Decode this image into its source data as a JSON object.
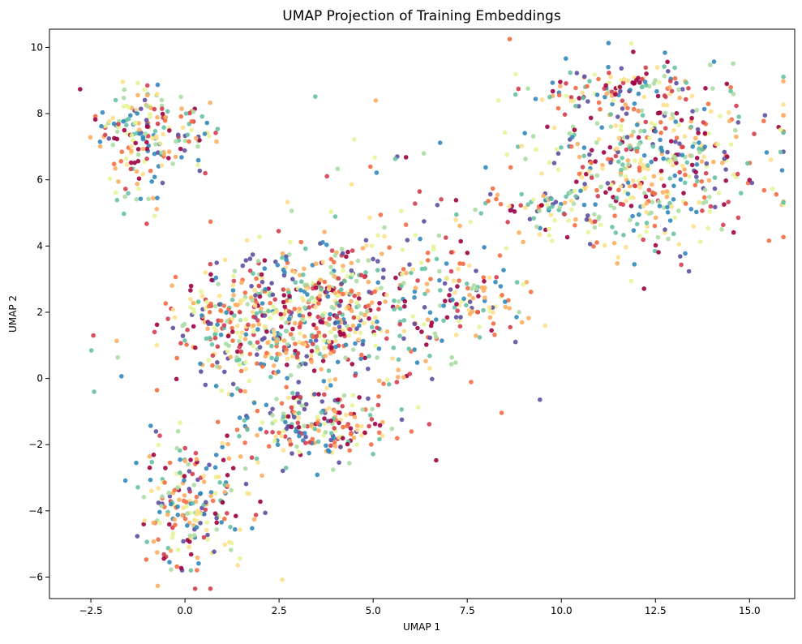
{
  "chart_data": {
    "type": "scatter",
    "title": "UMAP Projection of Training Embeddings",
    "xlabel": "UMAP 1",
    "ylabel": "UMAP 2",
    "xlim": [
      -3.6,
      16.2
    ],
    "ylim": [
      -6.65,
      10.55
    ],
    "xticks": [
      -2.5,
      0.0,
      2.5,
      5.0,
      7.5,
      10.0,
      12.5,
      15.0
    ],
    "xtick_labels": [
      "−2.5",
      "0.0",
      "2.5",
      "5.0",
      "7.5",
      "10.0",
      "12.5",
      "15.0"
    ],
    "yticks": [
      -6,
      -4,
      -2,
      0,
      2,
      4,
      6,
      8,
      10
    ],
    "ytick_labels": [
      "−6",
      "−4",
      "−2",
      "0",
      "2",
      "4",
      "6",
      "8",
      "10"
    ],
    "grid": false,
    "legend": "none",
    "colormap": "Spectral",
    "palette": [
      "#9e0142",
      "#d53e4f",
      "#f46d43",
      "#fdae61",
      "#fee08b",
      "#e6f598",
      "#abdda4",
      "#66c2a5",
      "#3288bd",
      "#5e4fa2"
    ],
    "clusters": [
      {
        "name": "top-left",
        "center": [
          -0.9,
          7.5
        ],
        "spread": [
          0.75,
          0.6
        ],
        "points": 190
      },
      {
        "name": "top-left-tail",
        "center": [
          -1.3,
          5.6
        ],
        "spread": [
          0.35,
          0.5
        ],
        "points": 25
      },
      {
        "name": "top-right",
        "center": [
          12.4,
          6.5
        ],
        "spread": [
          1.6,
          1.3
        ],
        "points": 520
      },
      {
        "name": "top-right-ridge",
        "center": [
          11.5,
          8.8
        ],
        "spread": [
          1.3,
          0.3
        ],
        "points": 90
      },
      {
        "name": "top-right-left-arm",
        "center": [
          9.3,
          5.0
        ],
        "spread": [
          0.8,
          0.35
        ],
        "points": 55
      },
      {
        "name": "center-main",
        "center": [
          2.3,
          1.7
        ],
        "spread": [
          1.3,
          1.0
        ],
        "points": 520
      },
      {
        "name": "center-ring",
        "center": [
          4.2,
          2.3
        ],
        "spread": [
          0.9,
          1.1
        ],
        "points": 180
      },
      {
        "name": "center-right-arm",
        "center": [
          6.6,
          2.6
        ],
        "spread": [
          1.0,
          1.5
        ],
        "points": 170
      },
      {
        "name": "right-arm",
        "center": [
          8.2,
          2.3
        ],
        "spread": [
          0.6,
          0.4
        ],
        "points": 45
      },
      {
        "name": "center-lower",
        "center": [
          3.4,
          -1.5
        ],
        "spread": [
          0.9,
          0.5
        ],
        "points": 210
      },
      {
        "name": "bottom-left",
        "center": [
          0.2,
          -3.8
        ],
        "spread": [
          0.75,
          1.0
        ],
        "points": 230
      },
      {
        "name": "mid-top-scatter",
        "center": [
          5.0,
          6.5
        ],
        "spread": [
          1.2,
          1.3
        ],
        "points": 18
      },
      {
        "name": "left-singletons",
        "center": [
          -2.0,
          0.8
        ],
        "spread": [
          0.5,
          0.5
        ],
        "points": 6
      }
    ]
  }
}
